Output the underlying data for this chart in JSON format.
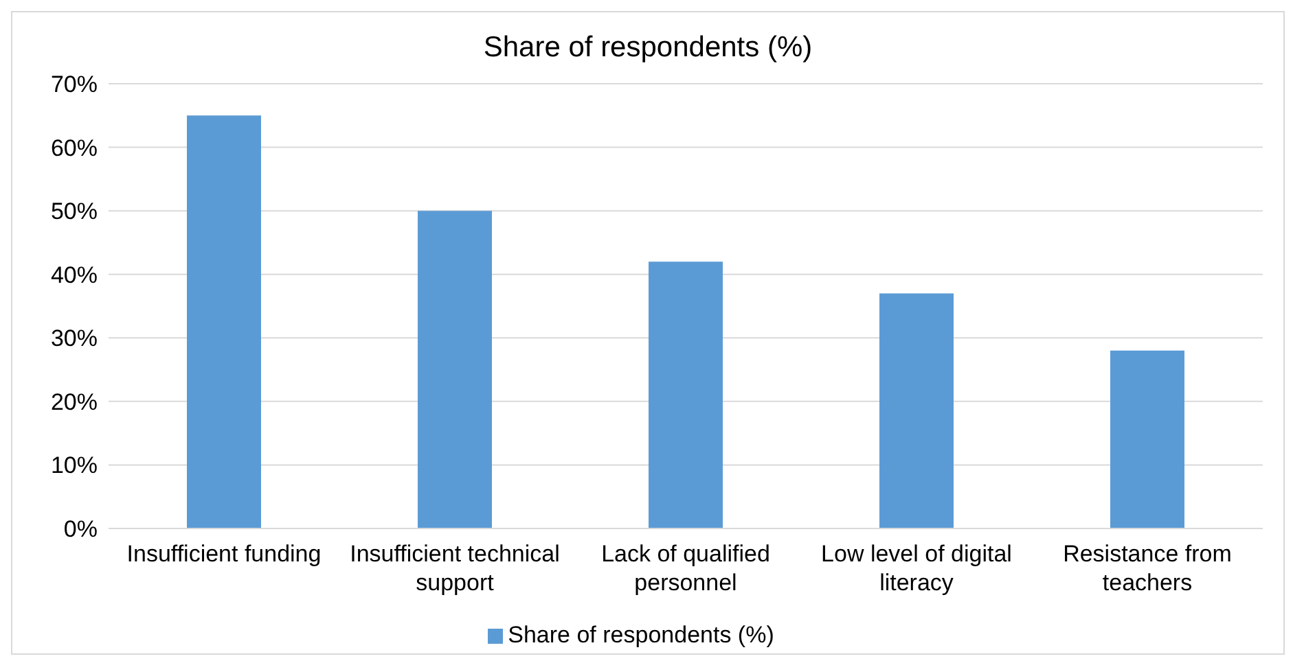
{
  "chart_data": {
    "type": "bar",
    "title": "Share of respondents (%)",
    "categories": [
      "Insufficient funding",
      "Insufficient technical support",
      "Lack of qualified personnel",
      "Low level of digital literacy",
      "Resistance from teachers"
    ],
    "series": [
      {
        "name": "Share of respondents (%)",
        "color": "#5b9bd5",
        "values": [
          65,
          50,
          42,
          37,
          28
        ]
      }
    ],
    "ylim": [
      0,
      70
    ],
    "yticks": [
      {
        "value": 0,
        "label": "0%"
      },
      {
        "value": 10,
        "label": "10%"
      },
      {
        "value": 20,
        "label": "20%"
      },
      {
        "value": 30,
        "label": "30%"
      },
      {
        "value": 40,
        "label": "40%"
      },
      {
        "value": 50,
        "label": "50%"
      },
      {
        "value": 60,
        "label": "60%"
      },
      {
        "value": 70,
        "label": "70%"
      }
    ],
    "grid": "y",
    "legend": "bottom"
  }
}
